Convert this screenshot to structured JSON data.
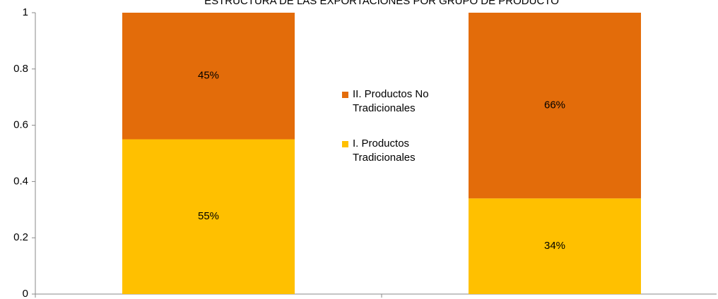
{
  "chart_data": {
    "type": "stacked-bar",
    "title": "ESTRUCTURA DE LAS EXPORTACIONES POR GRUPO DE PRODUCTO",
    "categories": [
      null,
      null
    ],
    "series": [
      {
        "name": "I. Productos Tradicionales",
        "color": "#ffc000",
        "values": [
          0.55,
          0.34
        ],
        "value_labels": [
          "55%",
          "34%"
        ]
      },
      {
        "name": "II. Productos No Tradicionales",
        "color": "#e36c0a",
        "values": [
          0.45,
          0.66
        ],
        "value_labels": [
          "45%",
          "66%"
        ]
      }
    ],
    "ylim": [
      0,
      1
    ],
    "yticks": [
      0,
      0.2,
      0.4,
      0.6,
      0.8,
      1
    ],
    "grid": false,
    "legend": "center"
  }
}
